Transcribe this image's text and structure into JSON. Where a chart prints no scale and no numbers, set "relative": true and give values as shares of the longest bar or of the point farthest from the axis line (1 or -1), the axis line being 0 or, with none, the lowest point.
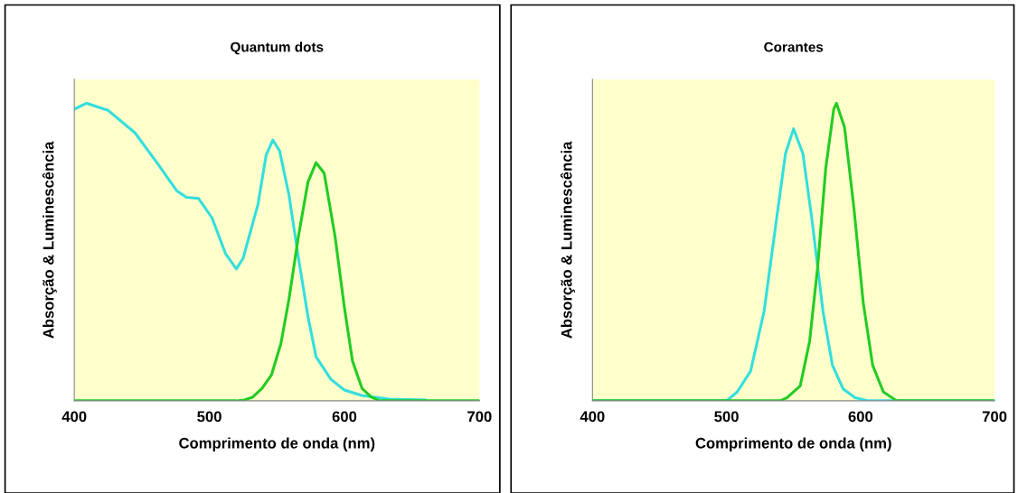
{
  "chart_data": [
    {
      "type": "line",
      "title": "Quantum dots",
      "xlabel": "Comprimento de onda (nm)",
      "ylabel": "Absorção & Luminescência",
      "relative": true,
      "xlim": [
        400,
        700
      ],
      "xticks": [
        400,
        500,
        600,
        700
      ],
      "tick_labels": "x",
      "grid": false,
      "line_style": "solid",
      "marker": "none",
      "series": [
        {
          "color": "#33dede",
          "x": [
            400,
            409,
            425,
            445,
            462,
            476,
            483,
            492,
            502,
            512,
            520,
            525,
            536,
            542,
            547,
            552,
            559,
            566,
            573,
            579,
            590,
            600,
            613,
            633,
            660
          ],
          "values": [
            0.98,
            1.0,
            0.976,
            0.9,
            0.795,
            0.705,
            0.684,
            0.68,
            0.614,
            0.494,
            0.443,
            0.479,
            0.66,
            0.825,
            0.876,
            0.84,
            0.69,
            0.479,
            0.283,
            0.148,
            0.072,
            0.036,
            0.018,
            0.006,
            0.003
          ]
        },
        {
          "color": "#22cc22",
          "x": [
            400,
            520,
            526,
            532,
            539,
            546,
            553,
            559,
            566,
            573,
            579,
            585,
            593,
            600,
            606,
            613,
            620,
            626,
            700
          ],
          "values": [
            0,
            0,
            0.003,
            0.012,
            0.042,
            0.087,
            0.193,
            0.343,
            0.554,
            0.735,
            0.8,
            0.765,
            0.554,
            0.313,
            0.133,
            0.042,
            0.012,
            0,
            0
          ]
        }
      ]
    },
    {
      "type": "line",
      "title": "Corantes",
      "xlabel": "Comprimento de onda (nm)",
      "ylabel": "Absorção & Luminescência",
      "relative": true,
      "xlim": [
        400,
        700
      ],
      "xticks": [
        400,
        500,
        600,
        700
      ],
      "tick_labels": "x",
      "grid": false,
      "line_style": "solid",
      "marker": "none",
      "series": [
        {
          "color": "#33dede",
          "x": [
            400,
            495,
            501,
            508,
            518,
            528,
            537,
            544,
            550,
            557,
            564,
            572,
            579,
            587,
            596,
            606,
            700
          ],
          "values": [
            0,
            0,
            0.003,
            0.03,
            0.1,
            0.3,
            0.6,
            0.83,
            0.914,
            0.83,
            0.6,
            0.3,
            0.12,
            0.04,
            0.01,
            0,
            0
          ]
        },
        {
          "color": "#22cc22",
          "x": [
            400,
            540,
            545,
            555,
            562,
            568,
            574,
            580,
            582,
            588,
            595,
            602,
            609,
            617,
            627,
            700
          ],
          "values": [
            0,
            0,
            0.01,
            0.05,
            0.2,
            0.45,
            0.78,
            0.98,
            1.0,
            0.92,
            0.65,
            0.33,
            0.12,
            0.03,
            0,
            0
          ]
        }
      ]
    }
  ]
}
